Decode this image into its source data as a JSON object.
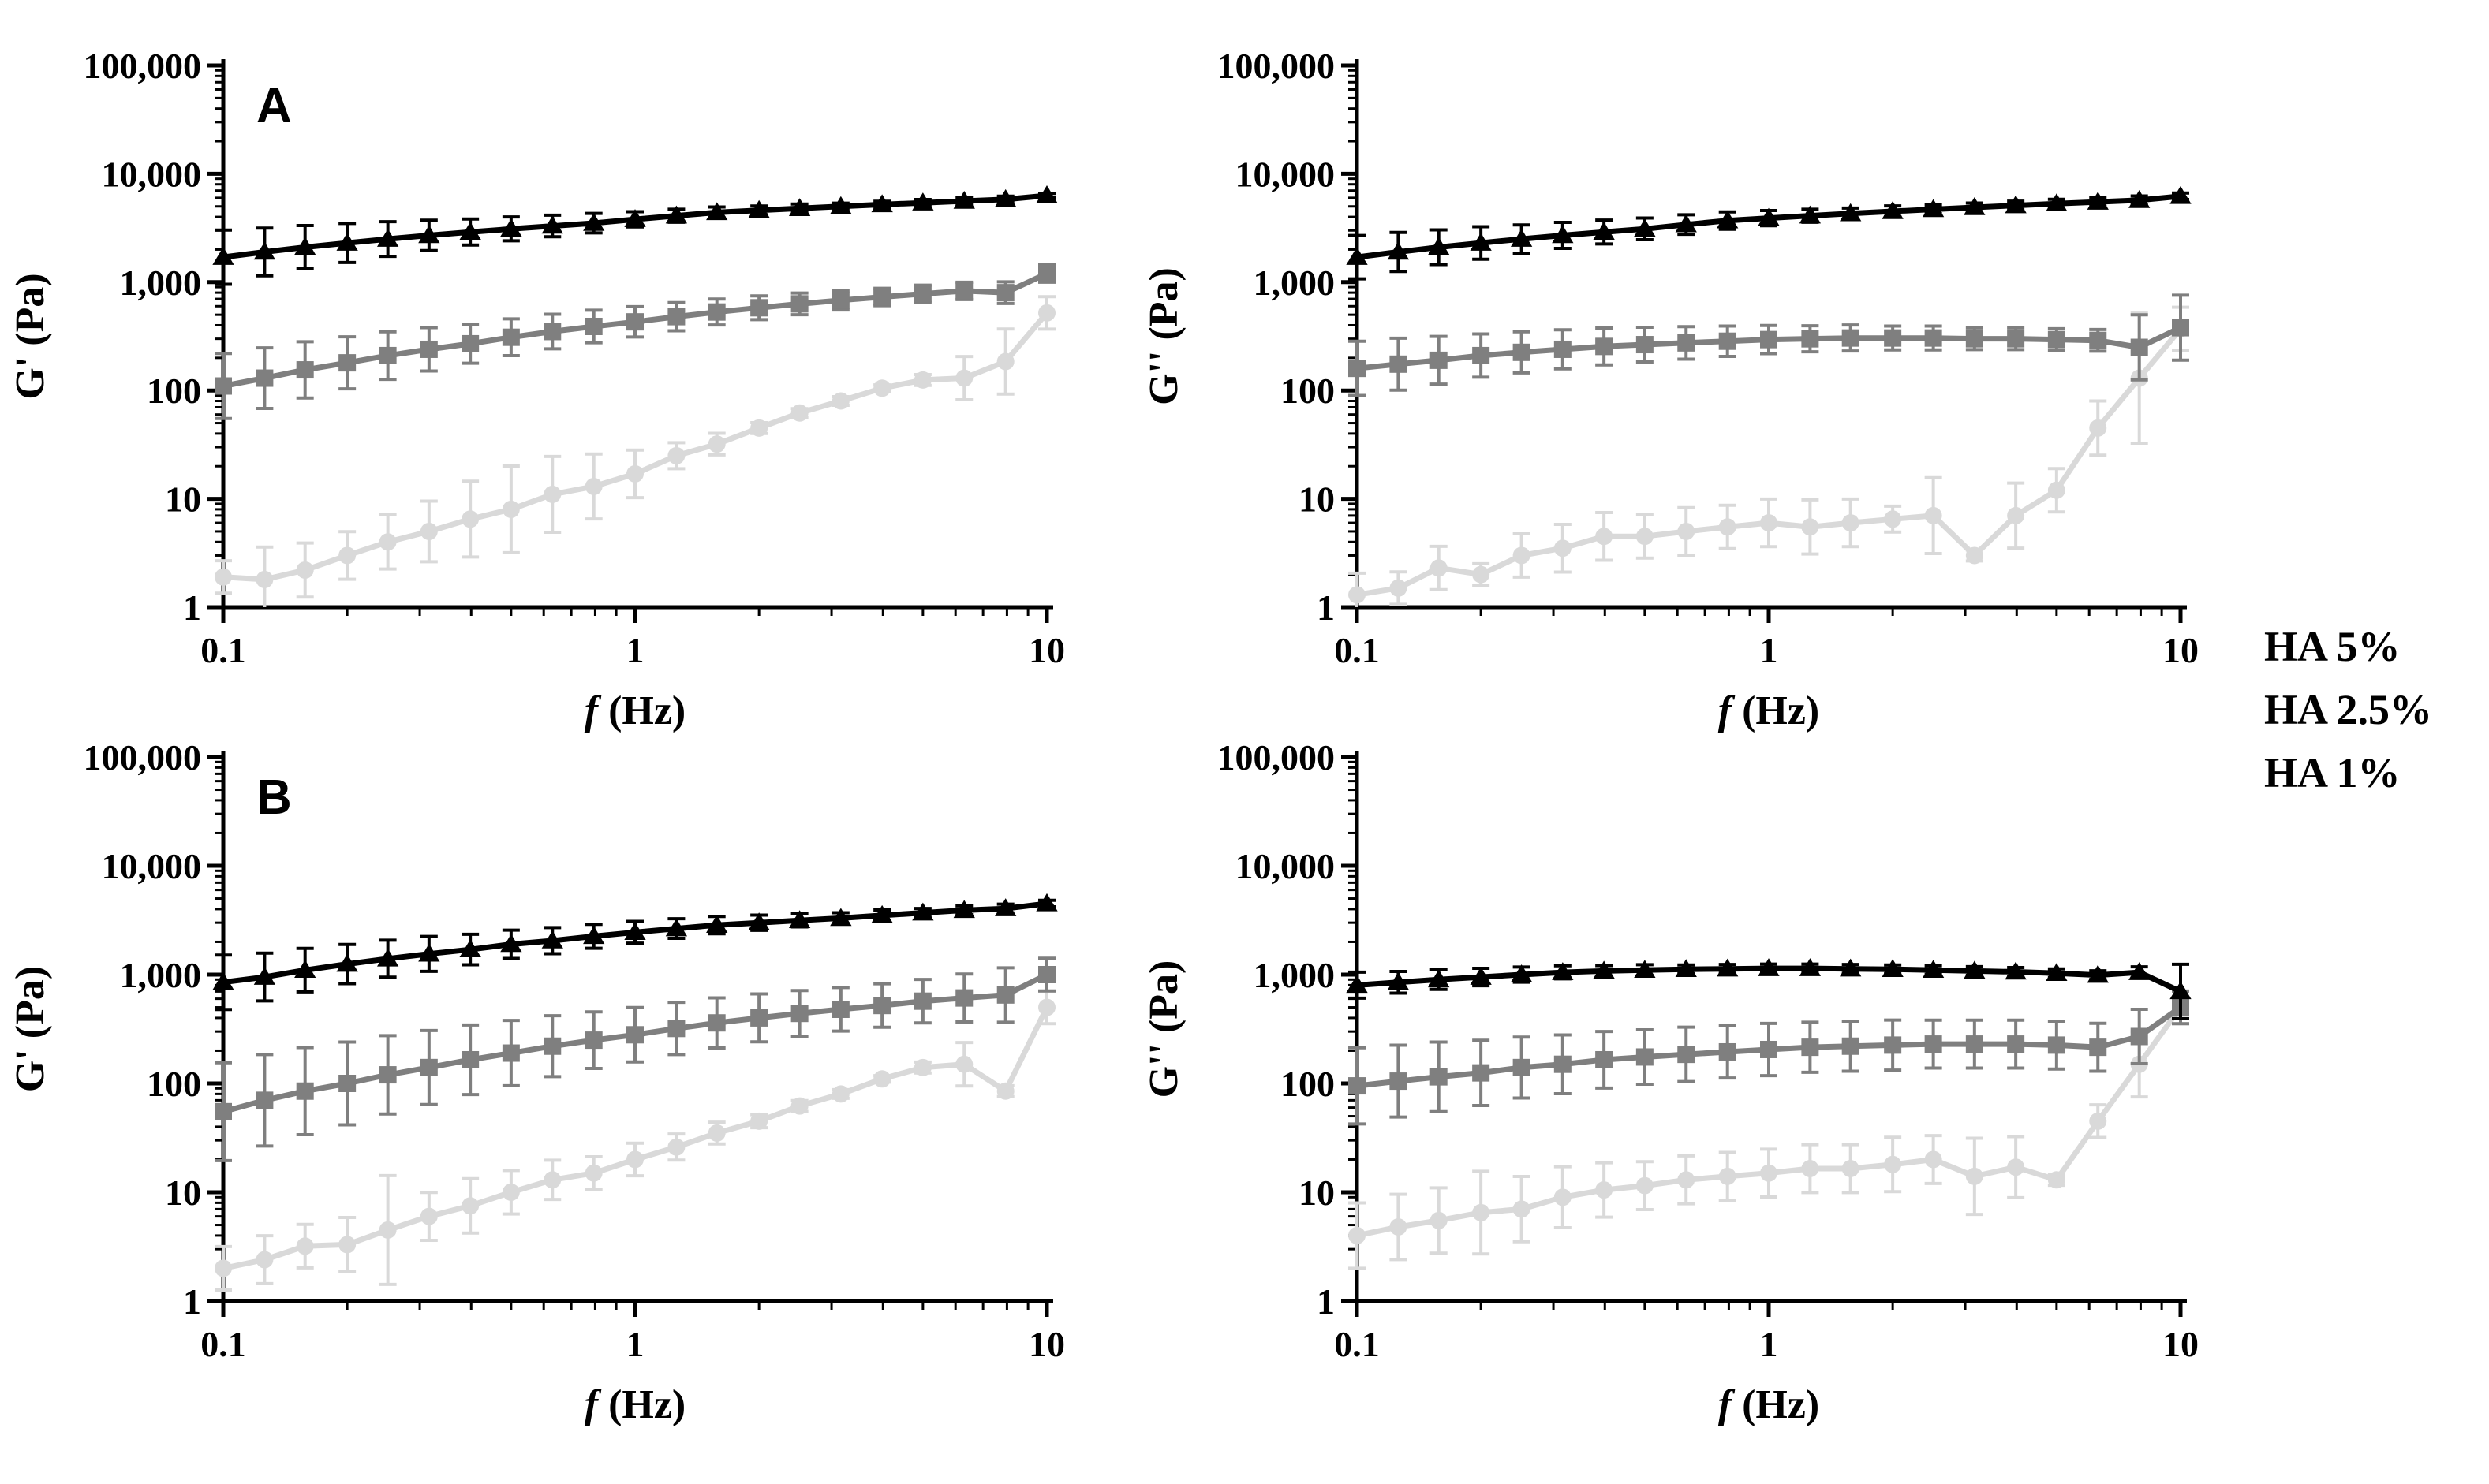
{
  "figure": {
    "legend": [
      {
        "label": "HA 5%",
        "color": "#000000",
        "marker": "triangle"
      },
      {
        "label": "HA 2.5%",
        "color": "#7f7f7f",
        "marker": "square"
      },
      {
        "label": "HA 1%",
        "color": "#d9d9d9",
        "marker": "circle"
      }
    ]
  },
  "chart_data": [
    {
      "id": "A-storage",
      "type": "line",
      "panel_label": "A",
      "xlabel_italic": "f",
      "xlabel_rest": " (Hz)",
      "ylabel": "G' (Pa)",
      "xscale": "log",
      "yscale": "log",
      "xlim": [
        0.1,
        10
      ],
      "ylim": [
        1,
        100000
      ],
      "xticks": [
        {
          "v": 0.1,
          "label": "0.1"
        },
        {
          "v": 1,
          "label": "1"
        },
        {
          "v": 10,
          "label": "10"
        }
      ],
      "yticks": [
        {
          "v": 1,
          "label": "1"
        },
        {
          "v": 10,
          "label": "10"
        },
        {
          "v": 100,
          "label": "100"
        },
        {
          "v": 1000,
          "label": "1,000"
        },
        {
          "v": 10000,
          "label": "10,000"
        },
        {
          "v": 100000,
          "label": "100,000"
        }
      ],
      "x": [
        0.1,
        0.126,
        0.158,
        0.2,
        0.251,
        0.316,
        0.398,
        0.5,
        0.63,
        0.794,
        1.0,
        1.26,
        1.58,
        2.0,
        2.51,
        3.16,
        3.98,
        5.0,
        6.3,
        7.94,
        10.0
      ],
      "series": [
        {
          "name": "HA 5%",
          "values": [
            1700,
            1900,
            2100,
            2300,
            2500,
            2700,
            2900,
            3100,
            3300,
            3500,
            3800,
            4100,
            4400,
            4600,
            4800,
            5000,
            5200,
            5400,
            5600,
            5800,
            6300
          ],
          "err": [
            0.25,
            0.22,
            0.2,
            0.18,
            0.16,
            0.14,
            0.12,
            0.11,
            0.1,
            0.09,
            0.07,
            0.06,
            0.05,
            0.04,
            0.04,
            0.03,
            0.03,
            0.03,
            0.03,
            0.03,
            0.02
          ]
        },
        {
          "name": "HA 2.5%",
          "values": [
            110,
            130,
            155,
            180,
            210,
            240,
            270,
            310,
            350,
            390,
            430,
            480,
            530,
            580,
            630,
            680,
            730,
            780,
            830,
            800,
            1200
          ],
          "err": [
            0.3,
            0.28,
            0.26,
            0.24,
            0.22,
            0.2,
            0.18,
            0.17,
            0.16,
            0.15,
            0.14,
            0.13,
            0.12,
            0.11,
            0.1,
            0.09,
            0.08,
            0.08,
            0.08,
            0.1,
            0.08
          ]
        },
        {
          "name": "HA 1%",
          "values": [
            1.9,
            1.8,
            2.2,
            3.0,
            4.0,
            5.0,
            6.5,
            8.0,
            11,
            13,
            17,
            25,
            32,
            45,
            62,
            80,
            105,
            125,
            130,
            185,
            520
          ],
          "err": [
            0.15,
            0.3,
            0.25,
            0.22,
            0.25,
            0.28,
            0.35,
            0.4,
            0.35,
            0.3,
            0.22,
            0.12,
            0.1,
            0.05,
            0.04,
            0.04,
            0.03,
            0.05,
            0.2,
            0.3,
            0.15
          ]
        }
      ]
    },
    {
      "id": "A-loss",
      "type": "line",
      "panel_label": "",
      "xlabel_italic": "f",
      "xlabel_rest": " (Hz)",
      "ylabel": "G'' (Pa)",
      "xscale": "log",
      "yscale": "log",
      "xlim": [
        0.1,
        10
      ],
      "ylim": [
        1,
        100000
      ],
      "xticks": [
        {
          "v": 0.1,
          "label": "0.1"
        },
        {
          "v": 1,
          "label": "1"
        },
        {
          "v": 10,
          "label": "10"
        }
      ],
      "yticks": [
        {
          "v": 1,
          "label": "1"
        },
        {
          "v": 10,
          "label": "10"
        },
        {
          "v": 100,
          "label": "100"
        },
        {
          "v": 1000,
          "label": "1,000"
        },
        {
          "v": 10000,
          "label": "10,000"
        },
        {
          "v": 100000,
          "label": "100,000"
        }
      ],
      "x": [
        0.1,
        0.126,
        0.158,
        0.2,
        0.251,
        0.316,
        0.398,
        0.5,
        0.63,
        0.794,
        1.0,
        1.26,
        1.58,
        2.0,
        2.51,
        3.16,
        3.98,
        5.0,
        6.3,
        7.94,
        10.0
      ],
      "series": [
        {
          "name": "HA 5%",
          "values": [
            1700,
            1900,
            2100,
            2300,
            2500,
            2700,
            2900,
            3100,
            3400,
            3700,
            3900,
            4100,
            4300,
            4500,
            4700,
            4900,
            5100,
            5300,
            5500,
            5700,
            6200
          ],
          "err": [
            0.2,
            0.18,
            0.16,
            0.15,
            0.13,
            0.12,
            0.11,
            0.1,
            0.09,
            0.08,
            0.07,
            0.06,
            0.05,
            0.05,
            0.04,
            0.04,
            0.04,
            0.04,
            0.04,
            0.04,
            0.03
          ]
        },
        {
          "name": "HA 2.5%",
          "values": [
            160,
            175,
            190,
            210,
            225,
            240,
            255,
            265,
            275,
            285,
            295,
            300,
            305,
            305,
            305,
            300,
            300,
            295,
            290,
            250,
            380
          ],
          "err": [
            0.25,
            0.24,
            0.22,
            0.2,
            0.19,
            0.18,
            0.17,
            0.16,
            0.15,
            0.14,
            0.13,
            0.12,
            0.12,
            0.11,
            0.11,
            0.1,
            0.1,
            0.1,
            0.1,
            0.3,
            0.3
          ]
        },
        {
          "name": "HA 1%",
          "values": [
            1.3,
            1.5,
            2.3,
            2.0,
            3.0,
            3.5,
            4.5,
            4.5,
            5.0,
            5.5,
            6.0,
            5.5,
            6.0,
            6.5,
            7.0,
            3.0,
            7.0,
            12,
            45,
            130,
            370
          ],
          "err": [
            0.2,
            0.15,
            0.2,
            0.1,
            0.2,
            0.22,
            0.22,
            0.2,
            0.22,
            0.2,
            0.22,
            0.25,
            0.22,
            0.12,
            0.35,
            0.05,
            0.3,
            0.2,
            0.25,
            0.6,
            0.2
          ]
        }
      ]
    },
    {
      "id": "B-storage",
      "type": "line",
      "panel_label": "B",
      "xlabel_italic": "f",
      "xlabel_rest": " (Hz)",
      "ylabel": "G' (Pa)",
      "xscale": "log",
      "yscale": "log",
      "xlim": [
        0.1,
        10
      ],
      "ylim": [
        1,
        100000
      ],
      "xticks": [
        {
          "v": 0.1,
          "label": "0.1"
        },
        {
          "v": 1,
          "label": "1"
        },
        {
          "v": 10,
          "label": "10"
        }
      ],
      "yticks": [
        {
          "v": 1,
          "label": "1"
        },
        {
          "v": 10,
          "label": "10"
        },
        {
          "v": 100,
          "label": "100"
        },
        {
          "v": 1000,
          "label": "1,000"
        },
        {
          "v": 10000,
          "label": "10,000"
        },
        {
          "v": 100000,
          "label": "100,000"
        }
      ],
      "x": [
        0.1,
        0.126,
        0.158,
        0.2,
        0.251,
        0.316,
        0.398,
        0.5,
        0.63,
        0.794,
        1.0,
        1.26,
        1.58,
        2.0,
        2.51,
        3.16,
        3.98,
        5.0,
        6.3,
        7.94,
        10.0
      ],
      "series": [
        {
          "name": "HA 5%",
          "values": [
            850,
            950,
            1100,
            1250,
            1400,
            1550,
            1700,
            1900,
            2050,
            2250,
            2450,
            2650,
            2850,
            3000,
            3150,
            3300,
            3500,
            3700,
            3900,
            4050,
            4500
          ],
          "err": [
            0.25,
            0.22,
            0.2,
            0.18,
            0.17,
            0.16,
            0.14,
            0.13,
            0.12,
            0.11,
            0.1,
            0.09,
            0.08,
            0.07,
            0.06,
            0.05,
            0.05,
            0.04,
            0.04,
            0.04,
            0.03
          ]
        },
        {
          "name": "HA 2.5%",
          "values": [
            55,
            70,
            85,
            100,
            120,
            140,
            165,
            190,
            220,
            250,
            280,
            320,
            360,
            400,
            440,
            480,
            520,
            570,
            610,
            650,
            1000
          ],
          "err": [
            0.45,
            0.42,
            0.4,
            0.38,
            0.36,
            0.34,
            0.32,
            0.3,
            0.28,
            0.26,
            0.25,
            0.24,
            0.23,
            0.22,
            0.21,
            0.2,
            0.2,
            0.2,
            0.22,
            0.25,
            0.15
          ]
        },
        {
          "name": "HA 1%",
          "values": [
            2.0,
            2.4,
            3.2,
            3.3,
            4.5,
            6.0,
            7.5,
            10,
            13,
            15,
            20,
            26,
            35,
            45,
            62,
            80,
            110,
            140,
            150,
            85,
            500
          ],
          "err": [
            0.2,
            0.22,
            0.2,
            0.25,
            0.5,
            0.22,
            0.25,
            0.2,
            0.18,
            0.15,
            0.15,
            0.12,
            0.1,
            0.06,
            0.05,
            0.04,
            0.03,
            0.05,
            0.2,
            0.05,
            0.15
          ]
        }
      ]
    },
    {
      "id": "B-loss",
      "type": "line",
      "panel_label": "",
      "xlabel_italic": "f",
      "xlabel_rest": " (Hz)",
      "ylabel": "G'' (Pa)",
      "xscale": "log",
      "yscale": "log",
      "xlim": [
        0.1,
        10
      ],
      "ylim": [
        1,
        100000
      ],
      "xticks": [
        {
          "v": 0.1,
          "label": "0.1"
        },
        {
          "v": 1,
          "label": "1"
        },
        {
          "v": 10,
          "label": "10"
        }
      ],
      "yticks": [
        {
          "v": 1,
          "label": "1"
        },
        {
          "v": 10,
          "label": "10"
        },
        {
          "v": 100,
          "label": "100"
        },
        {
          "v": 1000,
          "label": "1,000"
        },
        {
          "v": 10000,
          "label": "10,000"
        },
        {
          "v": 100000,
          "label": "100,000"
        }
      ],
      "x": [
        0.1,
        0.126,
        0.158,
        0.2,
        0.251,
        0.316,
        0.398,
        0.5,
        0.63,
        0.794,
        1.0,
        1.26,
        1.58,
        2.0,
        2.51,
        3.16,
        3.98,
        5.0,
        6.3,
        7.94,
        10.0
      ],
      "series": [
        {
          "name": "HA 5%",
          "values": [
            800,
            850,
            900,
            950,
            1000,
            1050,
            1080,
            1100,
            1120,
            1130,
            1140,
            1140,
            1130,
            1120,
            1100,
            1080,
            1060,
            1030,
            990,
            1050,
            700
          ],
          "err": [
            0.12,
            0.1,
            0.09,
            0.08,
            0.07,
            0.06,
            0.05,
            0.05,
            0.04,
            0.04,
            0.04,
            0.04,
            0.04,
            0.04,
            0.04,
            0.04,
            0.04,
            0.04,
            0.04,
            0.05,
            0.25
          ]
        },
        {
          "name": "HA 2.5%",
          "values": [
            95,
            105,
            115,
            125,
            140,
            150,
            165,
            175,
            185,
            195,
            205,
            215,
            220,
            225,
            230,
            230,
            230,
            225,
            215,
            270,
            500
          ],
          "err": [
            0.35,
            0.33,
            0.32,
            0.3,
            0.28,
            0.27,
            0.26,
            0.25,
            0.25,
            0.24,
            0.24,
            0.23,
            0.23,
            0.23,
            0.22,
            0.22,
            0.22,
            0.22,
            0.22,
            0.25,
            0.15
          ]
        },
        {
          "name": "HA 1%",
          "values": [
            4.0,
            4.8,
            5.5,
            6.5,
            7.0,
            9.0,
            10.5,
            11.5,
            13,
            14,
            15,
            16.5,
            16.5,
            18,
            20,
            14,
            17,
            13,
            45,
            150,
            500
          ],
          "err": [
            0.3,
            0.3,
            0.3,
            0.38,
            0.3,
            0.28,
            0.25,
            0.22,
            0.22,
            0.22,
            0.22,
            0.22,
            0.22,
            0.25,
            0.22,
            0.35,
            0.28,
            0.05,
            0.15,
            0.3,
            0.15
          ]
        }
      ]
    }
  ]
}
